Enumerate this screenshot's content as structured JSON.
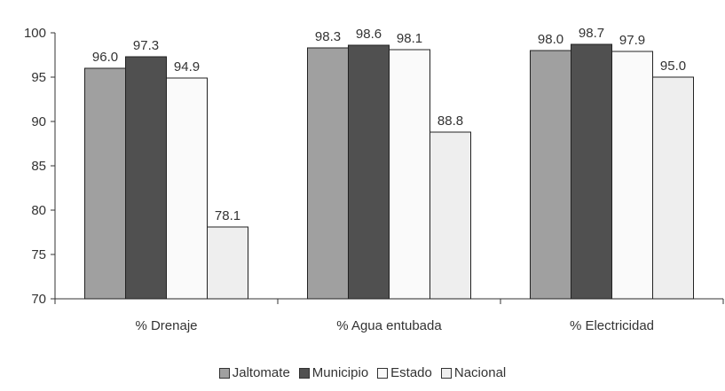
{
  "chart_data": {
    "type": "bar",
    "categories": [
      "% Drenaje",
      "% Agua entubada",
      "% Electricidad"
    ],
    "series": [
      {
        "name": "Jaltomate",
        "values": [
          96.0,
          98.3,
          98.0
        ],
        "color": "#a0a0a0"
      },
      {
        "name": "Municipio",
        "values": [
          97.3,
          98.6,
          98.7
        ],
        "color": "#505050"
      },
      {
        "name": "Estado",
        "values": [
          94.9,
          98.1,
          97.9
        ],
        "color": "#fafafa"
      },
      {
        "name": "Nacional",
        "values": [
          78.1,
          88.8,
          95.0
        ],
        "color": "#eeeeee"
      }
    ],
    "value_labels": [
      [
        "96.0",
        "98.3",
        "98.0"
      ],
      [
        "97.3",
        "98.6",
        "98.7"
      ],
      [
        "94.9",
        "98.1",
        "97.9"
      ],
      [
        "78.1",
        "88.8",
        "95.0"
      ]
    ],
    "ylim": [
      70,
      100
    ],
    "yticks": [
      "70",
      "75",
      "80",
      "85",
      "90",
      "95",
      "100"
    ],
    "legend_position": "bottom",
    "grid": false
  }
}
